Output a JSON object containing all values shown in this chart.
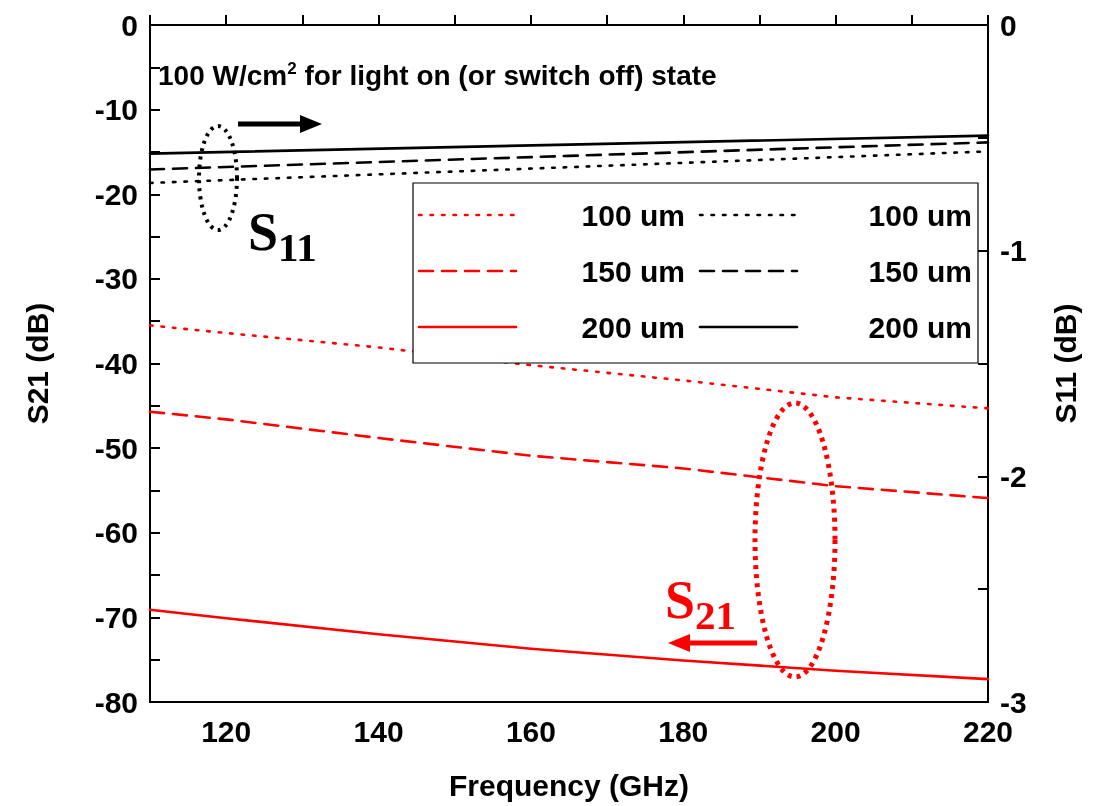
{
  "chart_data": {
    "type": "line",
    "xlabel": "Frequency (GHz)",
    "ylabel": "S21 (dB)",
    "y2label": "S11 (dB)",
    "annotations": [
      "100 W/cm$^{2}$ for light on (or switch off) state",
      "S$_{11}$",
      "S$_{21}$"
    ],
    "xlim": [
      110,
      220
    ],
    "xticks": [
      {
        "value": 110,
        "label": null
      },
      120,
      {
        "value": 130,
        "label": null
      },
      140,
      {
        "value": 150,
        "label": null
      },
      160,
      {
        "value": 170,
        "label": null
      },
      180,
      {
        "value": 190,
        "label": null
      },
      200,
      {
        "value": 210,
        "label": null
      },
      220
    ],
    "ylim": [
      -80,
      0
    ],
    "yticks": [
      -80,
      {
        "value": -75,
        "label": null
      },
      -70,
      {
        "value": -65,
        "label": null
      },
      -60,
      {
        "value": -55,
        "label": null
      },
      -50,
      {
        "value": -45,
        "label": null
      },
      -40,
      {
        "value": -35,
        "label": null
      },
      -30,
      {
        "value": -25,
        "label": null
      },
      -20,
      {
        "value": -15,
        "label": null
      },
      -10,
      {
        "value": -5,
        "label": null
      },
      0
    ],
    "y2lim": [
      -3,
      0
    ],
    "y2ticks": [
      -3,
      {
        "value": -2.5,
        "label": null
      },
      -2,
      {
        "value": -1.5,
        "label": null
      },
      -1,
      {
        "value": -0.5,
        "label": null
      },
      0
    ],
    "grid": false,
    "legend": "top right",
    "marker": "none",
    "series": [
      {
        "name": "100 um",
        "color": "#ff0000",
        "line_style": "dotted",
        "x": [
          110,
          120,
          140,
          160,
          180,
          200,
          220
        ],
        "values": [
          -35.5,
          -36.4,
          -38.1,
          -40.2,
          -42.0,
          -44.0,
          -45.3
        ]
      },
      {
        "name": "150 um",
        "color": "#ff0000",
        "line_style": "dashed",
        "x": [
          110,
          120,
          140,
          160,
          180,
          200,
          220
        ],
        "values": [
          -45.7,
          -46.6,
          -48.8,
          -50.9,
          -52.4,
          -54.5,
          -55.9
        ]
      },
      {
        "name": "200 um",
        "color": "#ff0000",
        "line_style": "solid",
        "x": [
          110,
          120,
          140,
          160,
          180,
          200,
          220
        ],
        "values": [
          -69.1,
          -70.1,
          -72.0,
          -73.7,
          -75.1,
          -76.3,
          -77.3
        ]
      },
      {
        "name": "100 um",
        "color": "#000000",
        "line_style": "dotted",
        "axis": "y2",
        "x": [
          110,
          165,
          220
        ],
        "values": [
          -0.7,
          -0.63,
          -0.56
        ]
      },
      {
        "name": "150 um",
        "color": "#000000",
        "line_style": "dashed",
        "axis": "y2",
        "x": [
          110,
          165,
          220
        ],
        "values": [
          -0.64,
          -0.58,
          -0.52
        ]
      },
      {
        "name": "200 um",
        "color": "#000000",
        "line_style": "solid",
        "axis": "y2",
        "x": [
          110,
          165,
          220
        ],
        "values": [
          -0.57,
          -0.53,
          -0.49
        ]
      }
    ]
  }
}
